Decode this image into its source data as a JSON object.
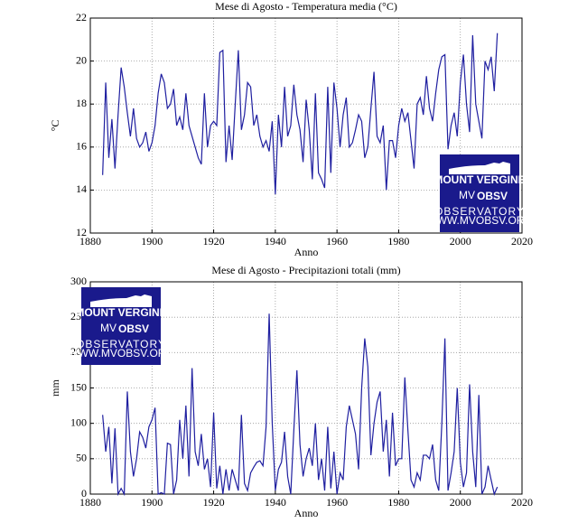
{
  "chart_data": [
    {
      "type": "line",
      "title": "Mese di Agosto - Temperatura media (°C)",
      "xlabel": "Anno",
      "ylabel": "°C",
      "color": "#1f1fa0",
      "grid": true,
      "xlim": [
        1880,
        2020
      ],
      "xticks": [
        1880,
        1900,
        1920,
        1940,
        1960,
        1980,
        2000,
        2020
      ],
      "ylim": [
        12,
        22
      ],
      "yticks": [
        12,
        14,
        16,
        18,
        20,
        22
      ],
      "x": [
        1884,
        1885,
        1886,
        1887,
        1888,
        1889,
        1890,
        1891,
        1892,
        1893,
        1894,
        1895,
        1896,
        1897,
        1898,
        1899,
        1900,
        1901,
        1902,
        1903,
        1904,
        1905,
        1906,
        1907,
        1908,
        1909,
        1910,
        1911,
        1912,
        1913,
        1914,
        1915,
        1916,
        1917,
        1918,
        1919,
        1920,
        1921,
        1922,
        1923,
        1924,
        1925,
        1926,
        1927,
        1928,
        1929,
        1930,
        1931,
        1932,
        1933,
        1934,
        1935,
        1936,
        1937,
        1938,
        1939,
        1940,
        1941,
        1942,
        1943,
        1944,
        1945,
        1946,
        1947,
        1948,
        1949,
        1950,
        1951,
        1952,
        1953,
        1954,
        1955,
        1956,
        1957,
        1958,
        1959,
        1960,
        1961,
        1962,
        1963,
        1964,
        1965,
        1966,
        1967,
        1968,
        1969,
        1970,
        1971,
        1972,
        1973,
        1974,
        1975,
        1976,
        1977,
        1978,
        1979,
        1980,
        1981,
        1982,
        1983,
        1984,
        1985,
        1986,
        1987,
        1988,
        1989,
        1990,
        1991,
        1992,
        1993,
        1994,
        1995,
        1996,
        1997,
        1998,
        1999,
        2000,
        2001,
        2002,
        2003,
        2004,
        2005,
        2006,
        2007,
        2008,
        2009,
        2010,
        2011,
        2012
      ],
      "values": [
        14.7,
        19.0,
        15.5,
        17.3,
        15.0,
        17.5,
        19.7,
        18.8,
        17.6,
        16.5,
        17.8,
        16.4,
        16.0,
        16.2,
        16.7,
        15.8,
        16.2,
        17.0,
        18.5,
        19.4,
        19.0,
        17.8,
        18.0,
        18.7,
        17.0,
        17.4,
        16.8,
        18.5,
        17.0,
        16.5,
        16.0,
        15.5,
        15.2,
        18.5,
        16.0,
        17.0,
        17.2,
        17.0,
        20.4,
        20.5,
        15.3,
        17.0,
        15.4,
        18.0,
        20.5,
        16.8,
        17.5,
        19.0,
        18.8,
        17.0,
        17.5,
        16.5,
        16.0,
        16.3,
        15.8,
        17.2,
        13.8,
        17.5,
        16.0,
        18.8,
        16.5,
        17.0,
        18.9,
        17.5,
        16.8,
        15.3,
        18.2,
        16.8,
        14.5,
        18.5,
        14.8,
        14.5,
        14.1,
        18.8,
        14.8,
        19.0,
        17.8,
        16.0,
        17.5,
        18.3,
        16.0,
        16.2,
        16.8,
        17.5,
        17.2,
        15.5,
        16.0,
        17.8,
        19.5,
        16.5,
        16.2,
        17.0,
        14.0,
        16.3,
        16.3,
        15.5,
        17.0,
        17.8,
        17.2,
        17.6,
        16.3,
        15.0,
        18.0,
        18.3,
        17.5,
        19.3,
        17.8,
        17.2,
        18.5,
        19.6,
        20.2,
        20.3,
        15.9,
        17.0,
        17.6,
        16.5,
        19.0,
        20.3,
        18.0,
        16.7,
        21.2,
        18.0,
        17.2,
        16.4,
        20.0,
        19.6,
        20.2,
        18.6,
        21.3
      ]
    },
    {
      "type": "line",
      "title": "Mese di Agosto - Precipitazioni totali (mm)",
      "xlabel": "Anno",
      "ylabel": "mm",
      "color": "#1f1fa0",
      "grid": true,
      "xlim": [
        1880,
        2020
      ],
      "xticks": [
        1880,
        1900,
        1920,
        1940,
        1960,
        1980,
        2000,
        2020
      ],
      "ylim": [
        0,
        300
      ],
      "yticks": [
        0,
        50,
        100,
        150,
        200,
        250,
        300
      ],
      "x": [
        1884,
        1885,
        1886,
        1887,
        1888,
        1889,
        1890,
        1891,
        1892,
        1893,
        1894,
        1895,
        1896,
        1897,
        1898,
        1899,
        1900,
        1901,
        1902,
        1903,
        1904,
        1905,
        1906,
        1907,
        1908,
        1909,
        1910,
        1911,
        1912,
        1913,
        1914,
        1915,
        1916,
        1917,
        1918,
        1919,
        1920,
        1921,
        1922,
        1923,
        1924,
        1925,
        1926,
        1927,
        1928,
        1929,
        1930,
        1931,
        1932,
        1933,
        1934,
        1935,
        1936,
        1937,
        1938,
        1939,
        1940,
        1941,
        1942,
        1943,
        1944,
        1945,
        1946,
        1947,
        1948,
        1949,
        1950,
        1951,
        1952,
        1953,
        1954,
        1955,
        1956,
        1957,
        1958,
        1959,
        1960,
        1961,
        1962,
        1963,
        1964,
        1965,
        1966,
        1967,
        1968,
        1969,
        1970,
        1971,
        1972,
        1973,
        1974,
        1975,
        1976,
        1977,
        1978,
        1979,
        1980,
        1981,
        1982,
        1983,
        1984,
        1985,
        1986,
        1987,
        1988,
        1989,
        1990,
        1991,
        1992,
        1993,
        1994,
        1995,
        1996,
        1997,
        1998,
        1999,
        2000,
        2001,
        2002,
        2003,
        2004,
        2005,
        2006,
        2007,
        2008,
        2009,
        2010,
        2011,
        2012
      ],
      "values": [
        112,
        60,
        95,
        15,
        93,
        0,
        8,
        0,
        145,
        60,
        25,
        50,
        88,
        80,
        65,
        95,
        105,
        122,
        0,
        2,
        0,
        72,
        70,
        0,
        20,
        105,
        50,
        125,
        25,
        178,
        60,
        40,
        85,
        35,
        50,
        10,
        115,
        8,
        40,
        0,
        35,
        5,
        35,
        20,
        5,
        112,
        15,
        5,
        30,
        38,
        45,
        47,
        40,
        95,
        255,
        100,
        5,
        35,
        45,
        88,
        25,
        0,
        90,
        175,
        70,
        25,
        50,
        65,
        40,
        100,
        20,
        50,
        5,
        95,
        8,
        60,
        0,
        30,
        20,
        95,
        125,
        105,
        85,
        35,
        150,
        220,
        180,
        55,
        100,
        130,
        145,
        60,
        105,
        25,
        115,
        40,
        50,
        50,
        165,
        90,
        20,
        10,
        30,
        20,
        55,
        55,
        50,
        70,
        20,
        5,
        100,
        220,
        5,
        30,
        60,
        150,
        45,
        10,
        30,
        155,
        60,
        10,
        140,
        0,
        10,
        40,
        20,
        0,
        10
      ]
    }
  ],
  "logo": {
    "line1": "MOUNT VERGINE",
    "mv": "MV",
    "obsv": "OBSV",
    "line3": "OBSERVATORY",
    "url": "WWW.MVOBSV.ORG"
  }
}
